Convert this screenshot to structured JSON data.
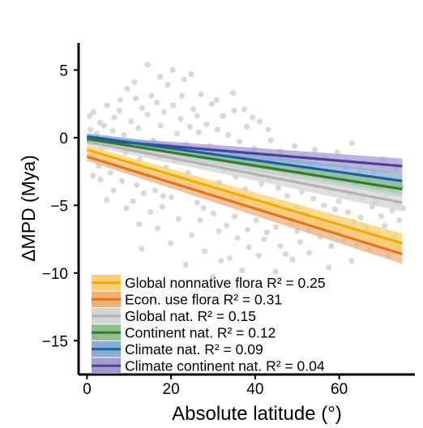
{
  "chart_data": {
    "type": "scatter",
    "xlabel": "Absolute latitude (°)",
    "ylabel": "ΔMPD (Mya)",
    "xlim": [
      -2,
      78
    ],
    "ylim": [
      -17.5,
      7
    ],
    "x_ticks": [
      0,
      20,
      40,
      60
    ],
    "y_ticks": [
      5,
      0,
      -5,
      -10,
      -15
    ],
    "x_tick_labels": [
      "0",
      "20",
      "40",
      "60"
    ],
    "y_tick_labels": [
      "5",
      "0",
      "−5",
      "−10",
      "−15"
    ],
    "legend_position": "bottom-left",
    "point_color": "#d9d9d9",
    "points": [
      [
        0.6,
        1.6
      ],
      [
        0.8,
        0.6
      ],
      [
        1.2,
        -0.4
      ],
      [
        1.5,
        1.9
      ],
      [
        2.0,
        -1.2
      ],
      [
        2.3,
        0.3
      ],
      [
        2.8,
        -2.1
      ],
      [
        3.1,
        1.1
      ],
      [
        3.5,
        -0.8
      ],
      [
        4.0,
        0.9
      ],
      [
        4.3,
        -1.6
      ],
      [
        4.8,
        2.4
      ],
      [
        5.2,
        -0.3
      ],
      [
        5.6,
        -2.6
      ],
      [
        6.1,
        0.5
      ],
      [
        6.5,
        1.5
      ],
      [
        7.0,
        -1.9
      ],
      [
        7.4,
        -0.6
      ],
      [
        7.9,
        2.8
      ],
      [
        8.3,
        -3.2
      ],
      [
        8.8,
        0.2
      ],
      [
        9.1,
        -1.1
      ],
      [
        9.6,
        3.6
      ],
      [
        10.0,
        -2.4
      ],
      [
        10.5,
        1.2
      ],
      [
        10.9,
        -0.4
      ],
      [
        11.3,
        4.1
      ],
      [
        11.8,
        -3.5
      ],
      [
        12.2,
        0.7
      ],
      [
        12.6,
        -1.6
      ],
      [
        13.1,
        2.2
      ],
      [
        13.5,
        -4.1
      ],
      [
        14.0,
        -0.9
      ],
      [
        14.4,
        1.7
      ],
      [
        14.8,
        -2.8
      ],
      [
        15.3,
        3.1
      ],
      [
        15.7,
        -0.2
      ],
      [
        16.2,
        -3.9
      ],
      [
        16.6,
        2.6
      ],
      [
        17.0,
        -1.4
      ],
      [
        17.5,
        0.9
      ],
      [
        17.9,
        -5.1
      ],
      [
        18.3,
        1.9
      ],
      [
        18.8,
        -2.2
      ],
      [
        19.2,
        3.9
      ],
      [
        19.6,
        -0.7
      ],
      [
        20.1,
        -4.4
      ],
      [
        20.5,
        2.4
      ],
      [
        21.0,
        -1.7
      ],
      [
        21.4,
        0.3
      ],
      [
        21.8,
        -6.0
      ],
      [
        22.3,
        1.4
      ],
      [
        22.7,
        -3.0
      ],
      [
        23.1,
        4.3
      ],
      [
        23.6,
        -0.5
      ],
      [
        24.0,
        -2.6
      ],
      [
        24.5,
        0.8
      ],
      [
        24.9,
        -7.2
      ],
      [
        25.3,
        2.1
      ],
      [
        25.8,
        -1.3
      ],
      [
        26.2,
        -4.8
      ],
      [
        26.6,
        0.4
      ],
      [
        27.1,
        3.2
      ],
      [
        27.5,
        -2.0
      ],
      [
        28.0,
        -8.4
      ],
      [
        28.4,
        1.0
      ],
      [
        28.8,
        -3.6
      ],
      [
        29.3,
        -0.6
      ],
      [
        29.7,
        2.5
      ],
      [
        30.1,
        -5.6
      ],
      [
        30.6,
        -1.8
      ],
      [
        31.0,
        0.6
      ],
      [
        31.5,
        -3.3
      ],
      [
        31.9,
        -9.1
      ],
      [
        32.3,
        1.6
      ],
      [
        32.8,
        -2.4
      ],
      [
        33.2,
        -6.5
      ],
      [
        33.6,
        0.2
      ],
      [
        34.1,
        -1.2
      ],
      [
        34.5,
        -4.2
      ],
      [
        35.0,
        2.0
      ],
      [
        35.4,
        -2.9
      ],
      [
        35.8,
        -7.4
      ],
      [
        36.3,
        -0.3
      ],
      [
        36.7,
        -5.0
      ],
      [
        37.1,
        -1.6
      ],
      [
        37.6,
        -3.8
      ],
      [
        38.0,
        0.8
      ],
      [
        38.5,
        -8.1
      ],
      [
        38.9,
        -2.3
      ],
      [
        39.3,
        -4.6
      ],
      [
        39.8,
        -0.8
      ],
      [
        40.2,
        -6.1
      ],
      [
        40.6,
        -2.8
      ],
      [
        41.1,
        1.2
      ],
      [
        41.5,
        -3.4
      ],
      [
        42.0,
        -5.4
      ],
      [
        42.4,
        -1.4
      ],
      [
        42.8,
        -7.0
      ],
      [
        43.3,
        -3.0
      ],
      [
        43.7,
        -0.2
      ],
      [
        44.1,
        -4.9
      ],
      [
        44.6,
        -2.1
      ],
      [
        45.0,
        -6.6
      ],
      [
        45.5,
        -3.7
      ],
      [
        45.9,
        -1.0
      ],
      [
        46.3,
        -5.8
      ],
      [
        46.8,
        -2.7
      ],
      [
        47.2,
        -8.6
      ],
      [
        47.6,
        -4.3
      ],
      [
        48.1,
        -1.7
      ],
      [
        48.5,
        -6.3
      ],
      [
        49.0,
        -3.1
      ],
      [
        49.4,
        -0.6
      ],
      [
        49.8,
        -5.1
      ],
      [
        50.3,
        -2.4
      ],
      [
        50.7,
        -7.7
      ],
      [
        51.1,
        -4.0
      ],
      [
        51.6,
        -1.3
      ],
      [
        52.0,
        -5.7
      ],
      [
        52.5,
        -3.3
      ],
      [
        52.9,
        -6.9
      ],
      [
        53.3,
        -2.0
      ],
      [
        53.8,
        -4.5
      ],
      [
        54.2,
        -0.9
      ],
      [
        54.6,
        -6.0
      ],
      [
        55.1,
        -3.6
      ],
      [
        55.5,
        -7.3
      ],
      [
        56.0,
        -2.6
      ],
      [
        56.4,
        -5.0
      ],
      [
        56.8,
        -1.5
      ],
      [
        57.3,
        -6.4
      ],
      [
        57.7,
        -3.9
      ],
      [
        58.1,
        -8.0
      ],
      [
        58.6,
        -2.9
      ],
      [
        59.0,
        -5.3
      ],
      [
        59.5,
        -1.1
      ],
      [
        59.9,
        -4.7
      ],
      [
        60.3,
        -6.8
      ],
      [
        60.8,
        -3.0
      ],
      [
        61.2,
        -7.6
      ],
      [
        61.6,
        -2.2
      ],
      [
        62.1,
        -5.5
      ],
      [
        62.5,
        -4.1
      ],
      [
        63.0,
        -0.4
      ],
      [
        63.4,
        -6.2
      ],
      [
        63.8,
        -3.4
      ],
      [
        64.3,
        -7.9
      ],
      [
        64.7,
        -2.7
      ],
      [
        65.1,
        -5.9
      ],
      [
        65.6,
        -4.4
      ],
      [
        66.0,
        -1.8
      ],
      [
        66.5,
        -6.7
      ],
      [
        66.9,
        -3.2
      ],
      [
        67.3,
        -8.3
      ],
      [
        67.8,
        -5.1
      ],
      [
        68.2,
        -2.5
      ],
      [
        68.6,
        -4.8
      ],
      [
        69.1,
        -7.1
      ],
      [
        69.5,
        -3.7
      ],
      [
        70.0,
        -5.8
      ],
      [
        70.4,
        -1.6
      ],
      [
        70.8,
        -6.5
      ],
      [
        71.3,
        -4.2
      ],
      [
        71.7,
        -8.7
      ],
      [
        72.1,
        -3.1
      ],
      [
        72.6,
        -5.4
      ],
      [
        73.0,
        -7.4
      ],
      [
        73.5,
        -2.3
      ],
      [
        73.9,
        -4.9
      ],
      [
        74.3,
        -6.1
      ],
      [
        74.8,
        -3.6
      ],
      [
        75.2,
        -5.2
      ],
      [
        13.0,
        -8.2
      ],
      [
        16.8,
        -6.7
      ],
      [
        19.9,
        -7.8
      ],
      [
        23.5,
        -9.4
      ],
      [
        26.9,
        -6.1
      ],
      [
        29.9,
        -10.3
      ],
      [
        33.9,
        -8.9
      ],
      [
        36.9,
        -9.8
      ],
      [
        40.9,
        -8.7
      ],
      [
        44.9,
        -9.9
      ],
      [
        48.9,
        -9.0
      ],
      [
        52.9,
        -8.5
      ],
      [
        57.5,
        -9.6
      ],
      [
        62.9,
        -9.1
      ],
      [
        14.4,
        5.4
      ],
      [
        20.4,
        5.0
      ],
      [
        24.8,
        4.7
      ],
      [
        10.9,
        -4.7
      ],
      [
        15.1,
        -5.5
      ],
      [
        18.1,
        -4.3
      ],
      [
        27.7,
        -5.2
      ],
      [
        31.4,
        -6.9
      ],
      [
        35.1,
        -5.8
      ],
      [
        38.2,
        -6.8
      ],
      [
        42.1,
        -7.5
      ],
      [
        46.0,
        -8.0
      ],
      [
        50.0,
        -6.9
      ],
      [
        3.2,
        -3.1
      ],
      [
        6.3,
        -3.9
      ],
      [
        9.4,
        -5.2
      ],
      [
        12.4,
        -6.4
      ],
      [
        21.2,
        -2.9
      ],
      [
        25.6,
        -3.4
      ],
      [
        28.8,
        -1.0
      ],
      [
        32.4,
        1.6
      ],
      [
        34.8,
        3.3
      ],
      [
        37.4,
        2.1
      ],
      [
        1.4,
        -2.8
      ],
      [
        4.7,
        -4.6
      ],
      [
        7.7,
        2.0
      ],
      [
        11.6,
        2.9
      ],
      [
        17.4,
        4.5
      ],
      [
        22.6,
        3.1
      ],
      [
        26.2,
        1.6
      ],
      [
        30.8,
        2.8
      ],
      [
        39.4,
        1.5
      ],
      [
        43.1,
        0.6
      ]
    ],
    "series": [
      {
        "name": "Global nonnative flora R² = 0.25",
        "color": "#f0ad00",
        "band": "#f8cf73",
        "y_at_x0": -0.9,
        "y_at_x75": -7.8,
        "ci": 0.45
      },
      {
        "name": "Econ. use flora R² = 0.31",
        "color": "#e1761a",
        "band": "#efb07a",
        "y_at_x0": -1.4,
        "y_at_x75": -8.6,
        "ci": 0.45
      },
      {
        "name": "Global nat. R² = 0.15",
        "color": "#b3b3b3",
        "band": "#d4d4d4",
        "y_at_x0": -0.3,
        "y_at_x75": -4.8,
        "ci": 0.4
      },
      {
        "name": "Continent nat. R² = 0.12",
        "color": "#2e7d32",
        "band": "#8fbf8f",
        "y_at_x0": -0.1,
        "y_at_x75": -3.8,
        "ci": 0.35
      },
      {
        "name": "Climate nat. R² = 0.09",
        "color": "#1f5fa0",
        "band": "#86aed4",
        "y_at_x0": 0.1,
        "y_at_x75": -3.2,
        "ci": 0.35
      },
      {
        "name": "Climate continent nat. R² = 0.04",
        "color": "#4f3f9b",
        "band": "#a49ad0",
        "y_at_x0": -0.1,
        "y_at_x75": -2.1,
        "ci": 0.35
      }
    ]
  }
}
